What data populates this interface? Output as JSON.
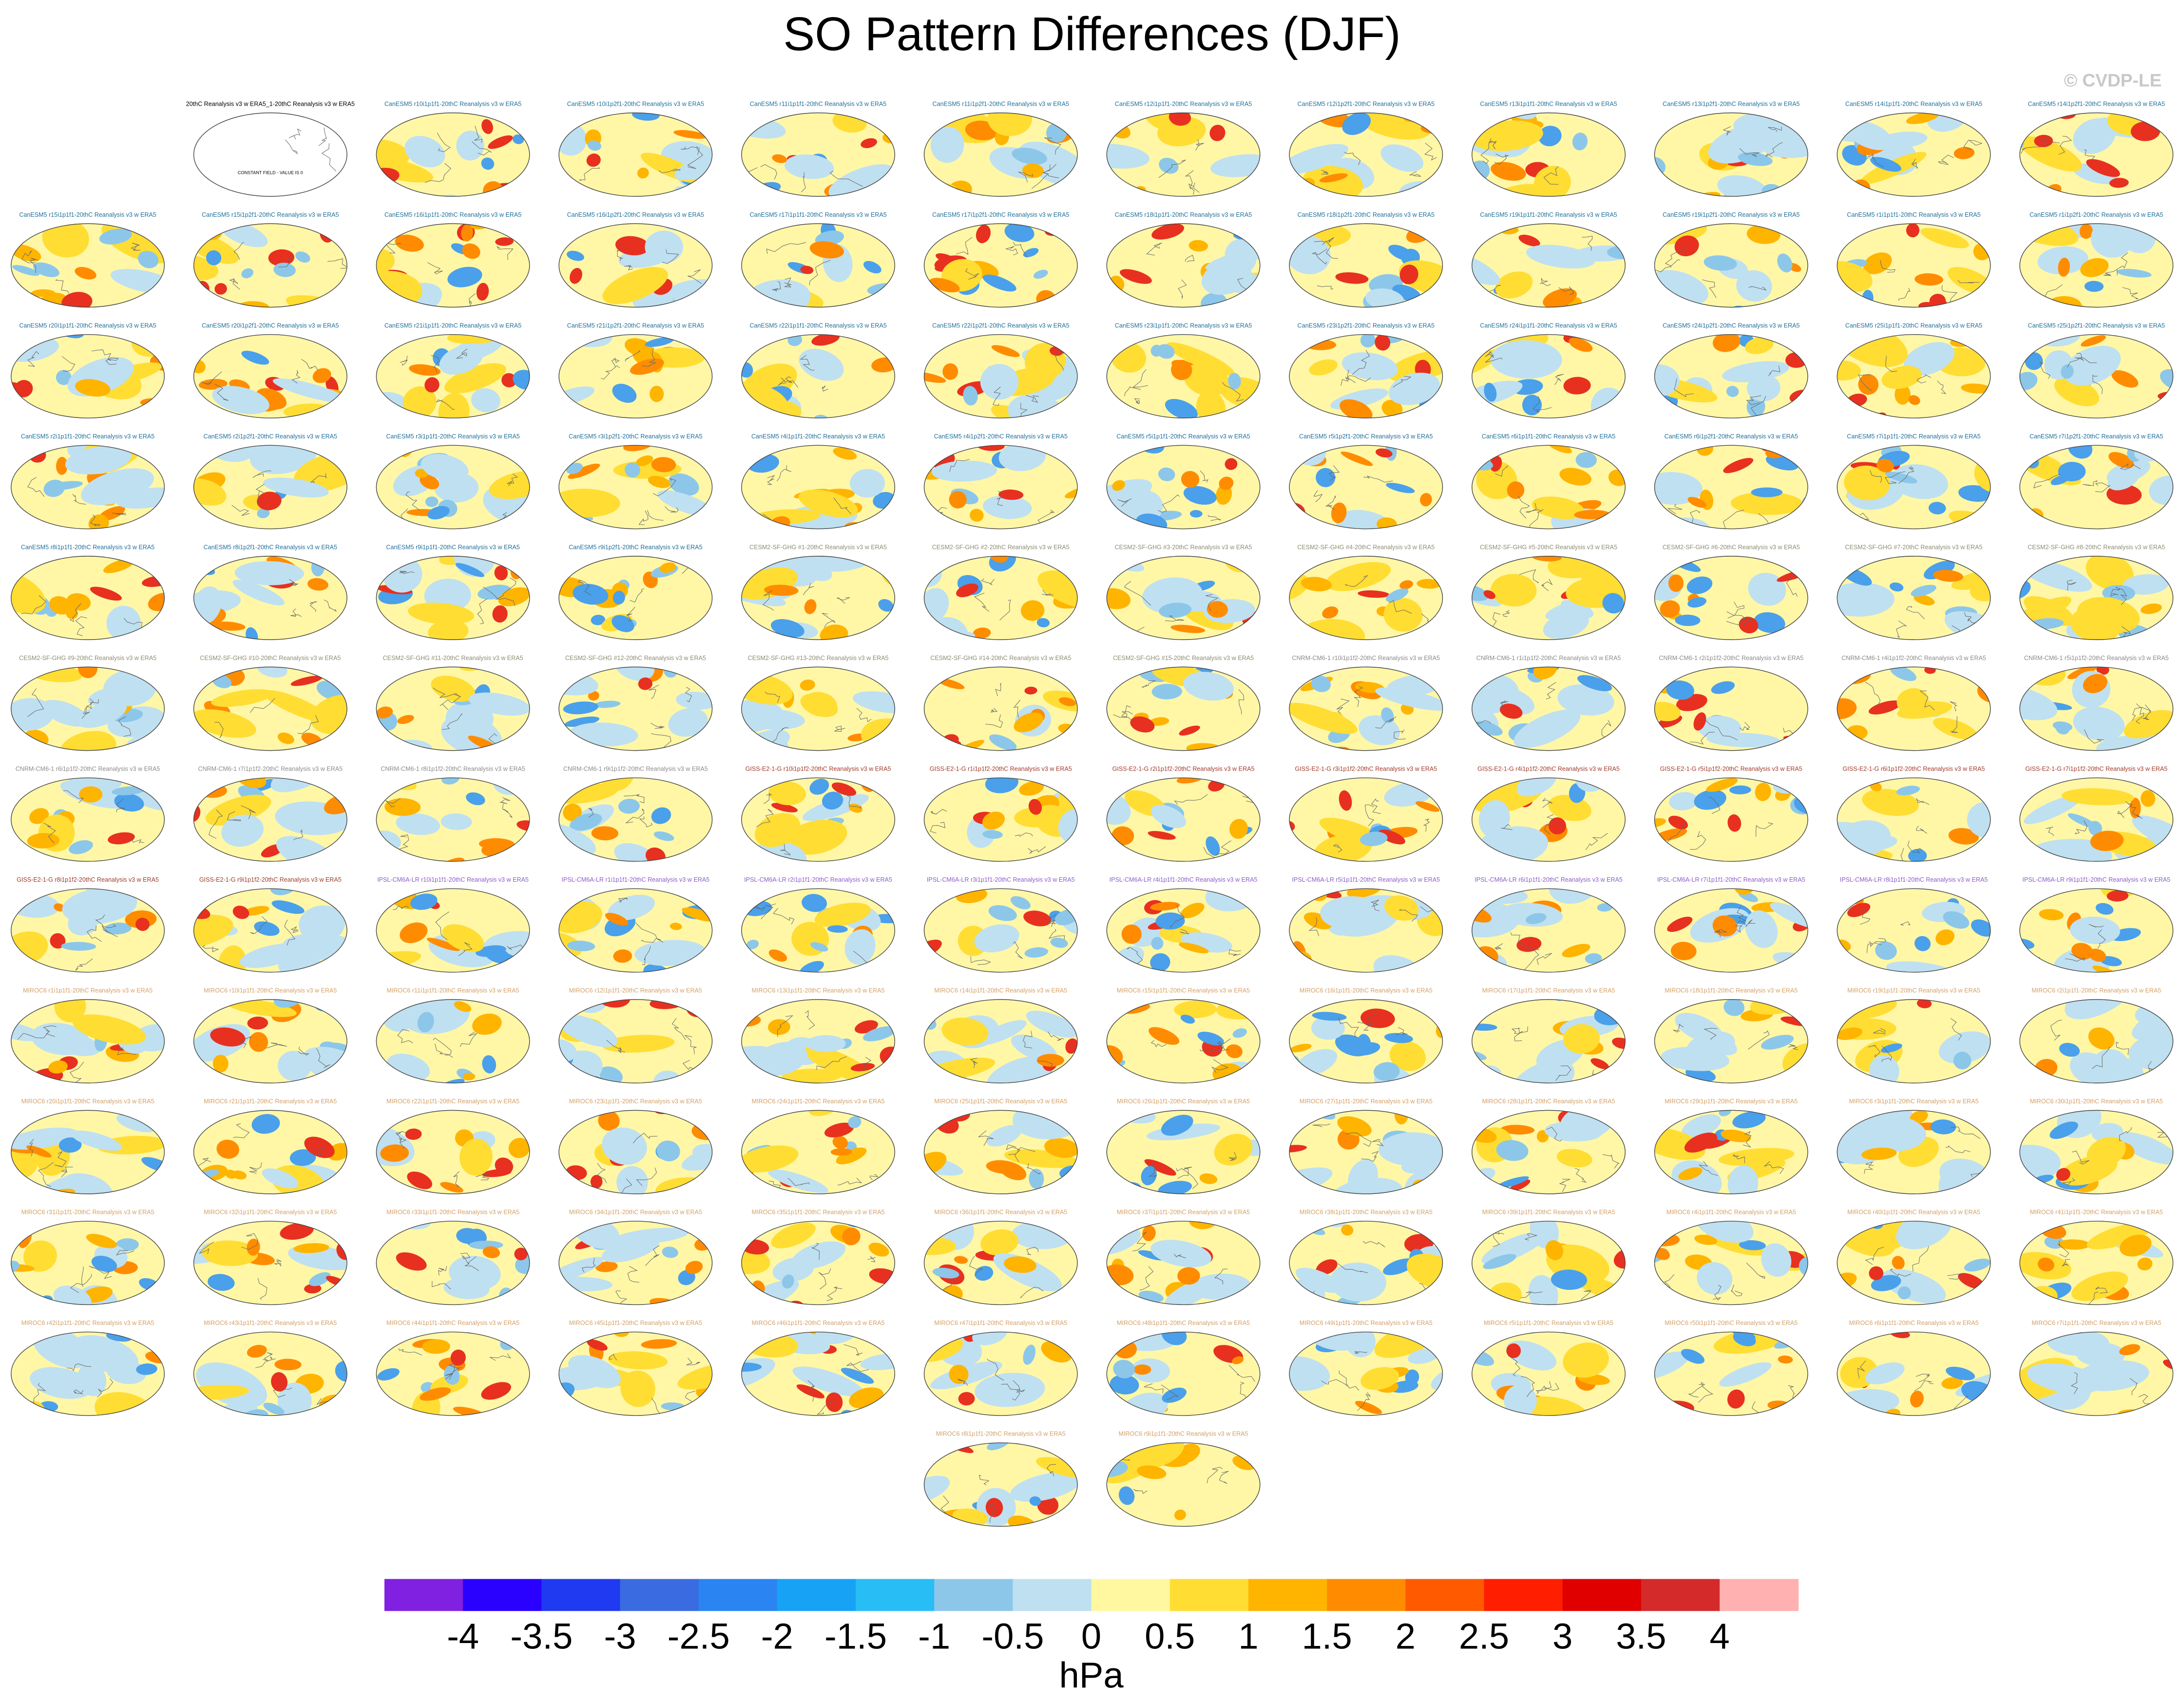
{
  "header": {
    "title": "SO Pattern Differences (DJF)",
    "credit": "© CVDP-LE"
  },
  "groups": [
    {
      "color": "#000000",
      "note": "CONSTANT FIELD - VALUE IS 0",
      "titles": [
        "20thC Reanalysis v3 w ERA5_1-20thC Reanalysis v3 w ERA5"
      ]
    },
    {
      "color": "#1f6f9a",
      "titles": [
        "CanESM5 r10i1p1f1-20thC Reanalysis v3 w ERA5",
        "CanESM5 r10i1p2f1-20thC Reanalysis v3 w ERA5",
        "CanESM5 r11i1p1f1-20thC Reanalysis v3 w ERA5",
        "CanESM5 r11i1p2f1-20thC Reanalysis v3 w ERA5",
        "CanESM5 r12i1p1f1-20thC Reanalysis v3 w ERA5",
        "CanESM5 r12i1p2f1-20thC Reanalysis v3 w ERA5",
        "CanESM5 r13i1p1f1-20thC Reanalysis v3 w ERA5",
        "CanESM5 r13i1p2f1-20thC Reanalysis v3 w ERA5",
        "CanESM5 r14i1p1f1-20thC Reanalysis v3 w ERA5",
        "CanESM5 r14i1p2f1-20thC Reanalysis v3 w ERA5",
        "CanESM5 r15i1p1f1-20thC Reanalysis v3 w ERA5",
        "CanESM5 r15i1p2f1-20thC Reanalysis v3 w ERA5",
        "CanESM5 r16i1p1f1-20thC Reanalysis v3 w ERA5",
        "CanESM5 r16i1p2f1-20thC Reanalysis v3 w ERA5",
        "CanESM5 r17i1p1f1-20thC Reanalysis v3 w ERA5",
        "CanESM5 r17i1p2f1-20thC Reanalysis v3 w ERA5",
        "CanESM5 r18i1p1f1-20thC Reanalysis v3 w ERA5",
        "CanESM5 r18i1p2f1-20thC Reanalysis v3 w ERA5",
        "CanESM5 r19i1p1f1-20thC Reanalysis v3 w ERA5",
        "CanESM5 r19i1p2f1-20thC Reanalysis v3 w ERA5",
        "CanESM5 r1i1p1f1-20thC Reanalysis v3 w ERA5",
        "CanESM5 r1i1p2f1-20thC Reanalysis v3 w ERA5",
        "CanESM5 r20i1p1f1-20thC Reanalysis v3 w ERA5",
        "CanESM5 r20i1p2f1-20thC Reanalysis v3 w ERA5",
        "CanESM5 r21i1p1f1-20thC Reanalysis v3 w ERA5",
        "CanESM5 r21i1p2f1-20thC Reanalysis v3 w ERA5",
        "CanESM5 r22i1p1f1-20thC Reanalysis v3 w ERA5",
        "CanESM5 r22i1p2f1-20thC Reanalysis v3 w ERA5",
        "CanESM5 r23i1p1f1-20thC Reanalysis v3 w ERA5",
        "CanESM5 r23i1p2f1-20thC Reanalysis v3 w ERA5",
        "CanESM5 r24i1p1f1-20thC Reanalysis v3 w ERA5",
        "CanESM5 r24i1p2f1-20thC Reanalysis v3 w ERA5",
        "CanESM5 r25i1p1f1-20thC Reanalysis v3 w ERA5",
        "CanESM5 r25i1p2f1-20thC Reanalysis v3 w ERA5",
        "CanESM5 r2i1p1f1-20thC Reanalysis v3 w ERA5",
        "CanESM5 r2i1p2f1-20thC Reanalysis v3 w ERA5",
        "CanESM5 r3i1p1f1-20thC Reanalysis v3 w ERA5",
        "CanESM5 r3i1p2f1-20thC Reanalysis v3 w ERA5",
        "CanESM5 r4i1p1f1-20thC Reanalysis v3 w ERA5",
        "CanESM5 r4i1p2f1-20thC Reanalysis v3 w ERA5",
        "CanESM5 r5i1p1f1-20thC Reanalysis v3 w ERA5",
        "CanESM5 r5i1p2f1-20thC Reanalysis v3 w ERA5",
        "CanESM5 r6i1p1f1-20thC Reanalysis v3 w ERA5",
        "CanESM5 r6i1p2f1-20thC Reanalysis v3 w ERA5",
        "CanESM5 r7i1p1f1-20thC Reanalysis v3 w ERA5",
        "CanESM5 r7i1p2f1-20thC Reanalysis v3 w ERA5",
        "CanESM5 r8i1p1f1-20thC Reanalysis v3 w ERA5",
        "CanESM5 r8i1p2f1-20thC Reanalysis v3 w ERA5",
        "CanESM5 r9i1p1f1-20thC Reanalysis v3 w ERA5",
        "CanESM5 r9i1p2f1-20thC Reanalysis v3 w ERA5"
      ]
    },
    {
      "color": "#8c8c74",
      "titles": [
        "CESM2-SF-GHG #1-20thC Reanalysis v3 w ERA5",
        "CESM2-SF-GHG #2-20thC Reanalysis v3 w ERA5",
        "CESM2-SF-GHG #3-20thC Reanalysis v3 w ERA5",
        "CESM2-SF-GHG #4-20thC Reanalysis v3 w ERA5",
        "CESM2-SF-GHG #5-20thC Reanalysis v3 w ERA5",
        "CESM2-SF-GHG #6-20thC Reanalysis v3 w ERA5",
        "CESM2-SF-GHG #7-20thC Reanalysis v3 w ERA5",
        "CESM2-SF-GHG #8-20thC Reanalysis v3 w ERA5",
        "CESM2-SF-GHG #9-20thC Reanalysis v3 w ERA5",
        "CESM2-SF-GHG #10-20thC Reanalysis v3 w ERA5",
        "CESM2-SF-GHG #11-20thC Reanalysis v3 w ERA5",
        "CESM2-SF-GHG #12-20thC Reanalysis v3 w ERA5",
        "CESM2-SF-GHG #13-20thC Reanalysis v3 w ERA5",
        "CESM2-SF-GHG #14-20thC Reanalysis v3 w ERA5",
        "CESM2-SF-GHG #15-20thC Reanalysis v3 w ERA5"
      ]
    },
    {
      "color": "#8a8a8a",
      "titles": [
        "CNRM-CM6-1 r10i1p1f2-20thC Reanalysis v3 w ERA5",
        "CNRM-CM6-1 r1i1p1f2-20thC Reanalysis v3 w ERA5",
        "CNRM-CM6-1 r2i1p1f2-20thC Reanalysis v3 w ERA5",
        "CNRM-CM6-1 r4i1p1f2-20thC Reanalysis v3 w ERA5",
        "CNRM-CM6-1 r5i1p1f2-20thC Reanalysis v3 w ERA5",
        "CNRM-CM6-1 r6i1p1f2-20thC Reanalysis v3 w ERA5",
        "CNRM-CM6-1 r7i1p1f2-20thC Reanalysis v3 w ERA5",
        "CNRM-CM6-1 r8i1p1f2-20thC Reanalysis v3 w ERA5",
        "CNRM-CM6-1 r9i1p1f2-20thC Reanalysis v3 w ERA5"
      ]
    },
    {
      "color": "#a03a2a",
      "titles": [
        "GISS-E2-1-G r10i1p1f2-20thC Reanalysis v3 w ERA5",
        "GISS-E2-1-G r1i1p1f2-20thC Reanalysis v3 w ERA5",
        "GISS-E2-1-G r2i1p1f2-20thC Reanalysis v3 w ERA5",
        "GISS-E2-1-G r3i1p1f2-20thC Reanalysis v3 w ERA5",
        "GISS-E2-1-G r4i1p1f2-20thC Reanalysis v3 w ERA5",
        "GISS-E2-1-G r5i1p1f2-20thC Reanalysis v3 w ERA5",
        "GISS-E2-1-G r6i1p1f2-20thC Reanalysis v3 w ERA5",
        "GISS-E2-1-G r7i1p1f2-20thC Reanalysis v3 w ERA5",
        "GISS-E2-1-G r8i1p1f2-20thC Reanalysis v3 w ERA5",
        "GISS-E2-1-G r9i1p1f2-20thC Reanalysis v3 w ERA5"
      ]
    },
    {
      "color": "#8a5cc8",
      "titles": [
        "IPSL-CM6A-LR r10i1p1f1-20thC Reanalysis v3 w ERA5",
        "IPSL-CM6A-LR r1i1p1f1-20thC Reanalysis v3 w ERA5",
        "IPSL-CM6A-LR r2i1p1f1-20thC Reanalysis v3 w ERA5",
        "IPSL-CM6A-LR r3i1p1f1-20thC Reanalysis v3 w ERA5",
        "IPSL-CM6A-LR r4i1p1f1-20thC Reanalysis v3 w ERA5",
        "IPSL-CM6A-LR r5i1p1f1-20thC Reanalysis v3 w ERA5",
        "IPSL-CM6A-LR r6i1p1f1-20thC Reanalysis v3 w ERA5",
        "IPSL-CM6A-LR r7i1p1f1-20thC Reanalysis v3 w ERA5",
        "IPSL-CM6A-LR r8i1p1f1-20thC Reanalysis v3 w ERA5",
        "IPSL-CM6A-LR r9i1p1f1-20thC Reanalysis v3 w ERA5"
      ]
    },
    {
      "color": "#d4a066",
      "titles": [
        "MIROC6 r1i1p1f1-20thC Reanalysis v3 w ERA5",
        "MIROC6 r10i1p1f1-20thC Reanalysis v3 w ERA5",
        "MIROC6 r11i1p1f1-20thC Reanalysis v3 w ERA5",
        "MIROC6 r12i1p1f1-20thC Reanalysis v3 w ERA5",
        "MIROC6 r13i1p1f1-20thC Reanalysis v3 w ERA5",
        "MIROC6 r14i1p1f1-20thC Reanalysis v3 w ERA5",
        "MIROC6 r15i1p1f1-20thC Reanalysis v3 w ERA5",
        "MIROC6 r16i1p1f1-20thC Reanalysis v3 w ERA5",
        "MIROC6 r17i1p1f1-20thC Reanalysis v3 w ERA5",
        "MIROC6 r18i1p1f1-20thC Reanalysis v3 w ERA5",
        "MIROC6 r19i1p1f1-20thC Reanalysis v3 w ERA5",
        "MIROC6 r2i1p1f1-20thC Reanalysis v3 w ERA5",
        "MIROC6 r20i1p1f1-20thC Reanalysis v3 w ERA5",
        "MIROC6 r21i1p1f1-20thC Reanalysis v3 w ERA5",
        "MIROC6 r22i1p1f1-20thC Reanalysis v3 w ERA5",
        "MIROC6 r23i1p1f1-20thC Reanalysis v3 w ERA5",
        "MIROC6 r24i1p1f1-20thC Reanalysis v3 w ERA5",
        "MIROC6 r25i1p1f1-20thC Reanalysis v3 w ERA5",
        "MIROC6 r26i1p1f1-20thC Reanalysis v3 w ERA5",
        "MIROC6 r27i1p1f1-20thC Reanalysis v3 w ERA5",
        "MIROC6 r28i1p1f1-20thC Reanalysis v3 w ERA5",
        "MIROC6 r29i1p1f1-20thC Reanalysis v3 w ERA5",
        "MIROC6 r3i1p1f1-20thC Reanalysis v3 w ERA5",
        "MIROC6 r30i1p1f1-20thC Reanalysis v3 w ERA5",
        "MIROC6 r31i1p1f1-20thC Reanalysis v3 w ERA5",
        "MIROC6 r32i1p1f1-20thC Reanalysis v3 w ERA5",
        "MIROC6 r33i1p1f1-20thC Reanalysis v3 w ERA5",
        "MIROC6 r34i1p1f1-20thC Reanalysis v3 w ERA5",
        "MIROC6 r35i1p1f1-20thC Reanalysis v3 w ERA5",
        "MIROC6 r36i1p1f1-20thC Reanalysis v3 w ERA5",
        "MIROC6 r37i1p1f1-20thC Reanalysis v3 w ERA5",
        "MIROC6 r38i1p1f1-20thC Reanalysis v3 w ERA5",
        "MIROC6 r39i1p1f1-20thC Reanalysis v3 w ERA5",
        "MIROC6 r4i1p1f1-20thC Reanalysis v3 w ERA5",
        "MIROC6 r40i1p1f1-20thC Reanalysis v3 w ERA5",
        "MIROC6 r41i1p1f1-20thC Reanalysis v3 w ERA5",
        "MIROC6 r42i1p1f1-20thC Reanalysis v3 w ERA5",
        "MIROC6 r43i1p1f1-20thC Reanalysis v3 w ERA5",
        "MIROC6 r44i1p1f1-20thC Reanalysis v3 w ERA5",
        "MIROC6 r45i1p1f1-20thC Reanalysis v3 w ERA5",
        "MIROC6 r46i1p1f1-20thC Reanalysis v3 w ERA5",
        "MIROC6 r47i1p1f1-20thC Reanalysis v3 w ERA5",
        "MIROC6 r48i1p1f1-20thC Reanalysis v3 w ERA5",
        "MIROC6 r49i1p1f1-20thC Reanalysis v3 w ERA5",
        "MIROC6 r5i1p1f1-20thC Reanalysis v3 w ERA5",
        "MIROC6 r50i1p1f1-20thC Reanalysis v3 w ERA5",
        "MIROC6 r6i1p1f1-20thC Reanalysis v3 w ERA5",
        "MIROC6 r7i1p1f1-20thC Reanalysis v3 w ERA5",
        "MIROC6 r8i1p1f1-20thC Reanalysis v3 w ERA5",
        "MIROC6 r9i1p1f1-20thC Reanalysis v3 w ERA5"
      ]
    }
  ],
  "colorbar": {
    "label": "hPa",
    "lim": [
      -4.5,
      4.5
    ],
    "ticks": [
      -4,
      -3.5,
      -3,
      -2.5,
      -2,
      -1.5,
      -1,
      -0.5,
      0,
      0.5,
      1,
      1.5,
      2,
      2.5,
      3,
      3.5,
      4
    ],
    "colors": [
      "#8020e0",
      "#2a00ff",
      "#1f3af0",
      "#3a6be0",
      "#2a85f2",
      "#17a2f5",
      "#28bef5",
      "#8cc7ea",
      "#bee0f0",
      "#fff8a0",
      "#ffdd33",
      "#ffb400",
      "#ff8c00",
      "#ff5a00",
      "#ff1e00",
      "#e00000",
      "#d42a2a",
      "#ffb0b0"
    ]
  }
}
